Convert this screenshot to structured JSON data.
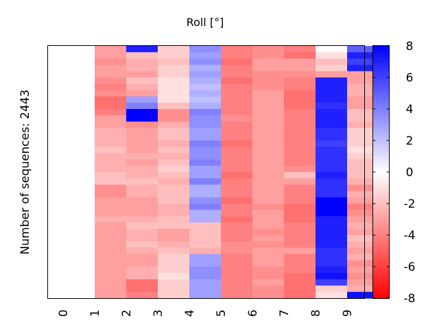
{
  "chart_data": {
    "type": "heatmap",
    "title": "Roll [°]",
    "ylabel": "Number of sequences: 2443",
    "xlabel": "",
    "x_tick_labels": [
      "0",
      "1",
      "2",
      "3",
      "4",
      "5",
      "6",
      "7",
      "8",
      "9"
    ],
    "colorbar": {
      "min": -8,
      "max": 8,
      "ticks": [
        "8",
        "6",
        "4",
        "2",
        "0",
        "-2",
        "-4",
        "-6",
        "-8"
      ],
      "colors": {
        "low": "#ff0000",
        "mid": "#ffffff",
        "high": "#0000ff"
      }
    },
    "columns": [
      {
        "label": "0",
        "values": [
          0,
          0,
          0,
          0,
          0,
          0,
          0,
          0,
          0,
          0,
          0,
          0,
          0,
          0,
          0,
          0,
          0,
          0,
          0,
          0,
          0,
          0,
          0,
          0,
          0,
          0,
          0,
          0,
          0,
          0,
          0,
          0,
          0,
          0,
          0,
          0,
          0,
          0,
          0,
          0
        ]
      },
      {
        "label": "1",
        "values": [
          -3,
          -3,
          -3.5,
          -3,
          -3,
          -3.5,
          -4,
          -3.5,
          -4.5,
          -4.5,
          -4,
          -3,
          -3,
          -2.5,
          -2.5,
          -2.5,
          -2,
          -2.5,
          -2.5,
          -2.5,
          -2,
          -2,
          -3.5,
          -3.5,
          -3,
          -3,
          -3,
          -2.5,
          -3,
          -3,
          -3,
          -3,
          -3,
          -3,
          -3,
          -3,
          -3,
          -3,
          -3,
          -3
        ]
      },
      {
        "label": "2",
        "values": [
          7,
          -2,
          -2.5,
          -2.5,
          -3,
          -2,
          -2.5,
          -3,
          3,
          4,
          8,
          8,
          -3.5,
          -3,
          -3,
          -3,
          -3,
          -2.5,
          -3,
          -2.5,
          -2.5,
          -2,
          -2.5,
          -2.5,
          -3,
          -3,
          -3,
          -2.5,
          -2,
          -2.5,
          -2.5,
          -2,
          -2.5,
          -3,
          -3,
          -2.5,
          -2.5,
          -4.5,
          -4.5,
          -4
        ]
      },
      {
        "label": "3",
        "values": [
          -1.5,
          -1.5,
          -2,
          -1.5,
          -1.5,
          -1,
          -1,
          -1,
          -1,
          -2,
          -3.5,
          -3.5,
          -2.5,
          -2,
          -2,
          -2.5,
          -2,
          -2.5,
          -2,
          -1.5,
          -2,
          -2.5,
          -2,
          -2,
          -2,
          -2.5,
          -2.5,
          -2,
          -2,
          -3,
          -3,
          -2.5,
          -2,
          -1.5,
          -1.5,
          -1.5,
          -1,
          -1.5,
          -1.5,
          -1.5
        ]
      },
      {
        "label": "4",
        "values": [
          3.5,
          3,
          3.5,
          2.5,
          3,
          2.5,
          2,
          2.5,
          2,
          2.5,
          4,
          3.5,
          3.5,
          3,
          3,
          4,
          3.5,
          3.5,
          4,
          3,
          3,
          4,
          2.5,
          2.5,
          3.5,
          4,
          2.5,
          2.5,
          -2,
          -2,
          -2,
          -2,
          -2.5,
          3,
          3,
          3.5,
          3.5,
          3,
          3,
          3
        ]
      },
      {
        "label": "5",
        "values": [
          -4,
          -4,
          -4.5,
          -4,
          -4,
          -4.5,
          -4,
          -4,
          -4,
          -4,
          -4,
          -3.5,
          -4,
          -4,
          -4,
          -4.5,
          -4,
          -4,
          -4,
          -4,
          -4.5,
          -4,
          -4,
          -4,
          -4.5,
          -4,
          -4,
          -4.5,
          -4,
          -4,
          -4,
          -3.5,
          -3.5,
          -4,
          -4,
          -4,
          -4,
          -4,
          -4,
          -4
        ]
      },
      {
        "label": "6",
        "values": [
          -3.5,
          -3.5,
          -3,
          -3,
          -3.5,
          -3.5,
          -3.5,
          -3,
          -3,
          -3,
          -3,
          -3,
          -3,
          -3,
          -3,
          -3,
          -3,
          -3,
          -3,
          -3,
          -3,
          -3,
          -3,
          -3,
          -3,
          -3.5,
          -3,
          -3,
          -3,
          -3.5,
          -3,
          -3.5,
          -3,
          -3,
          -3,
          -3.5,
          -3.5,
          -3,
          -3.5,
          -3.5
        ]
      },
      {
        "label": "7",
        "values": [
          -4,
          -4.5,
          -3,
          -3,
          -3.5,
          -4,
          -4,
          -4.5,
          -4.5,
          -4.5,
          -4,
          -4,
          -4,
          -4,
          -4,
          -4,
          -4,
          -4,
          -4,
          -3.5,
          -2,
          -3,
          -4,
          -4,
          -4,
          -4.5,
          -4.5,
          -4.5,
          -4,
          -4,
          -4,
          -4,
          -3,
          -4,
          -4,
          -4,
          -4.5,
          -4.5,
          -4.5,
          -4.5
        ]
      },
      {
        "label": "8",
        "values": [
          0,
          -1,
          -2,
          -1.5,
          -3,
          7,
          7,
          7,
          7,
          6.5,
          7,
          7,
          7,
          6.5,
          6.5,
          6,
          6.5,
          6.5,
          6.5,
          6.5,
          7,
          6.5,
          6.5,
          6.5,
          8,
          8,
          8,
          7,
          7,
          7,
          7,
          7,
          6.5,
          6.5,
          6.5,
          7,
          7.5,
          6,
          -1.5,
          -1
        ]
      },
      {
        "label": "9",
        "values": [
          5,
          7,
          6,
          7,
          -3,
          -3,
          -2.5,
          -2.5,
          -3,
          -3,
          -2,
          -2,
          -2.5,
          -1.5,
          -1.5,
          -1.5,
          -1,
          -1.5,
          -2,
          -2,
          -2,
          -2.5,
          -3.5,
          -2.5,
          -3,
          -4,
          -3.5,
          -3,
          -2.5,
          -3,
          -2,
          -2.5,
          -3,
          -2.5,
          -3.5,
          -3,
          -3.5,
          -3,
          -2.5,
          7.5
        ]
      }
    ]
  }
}
